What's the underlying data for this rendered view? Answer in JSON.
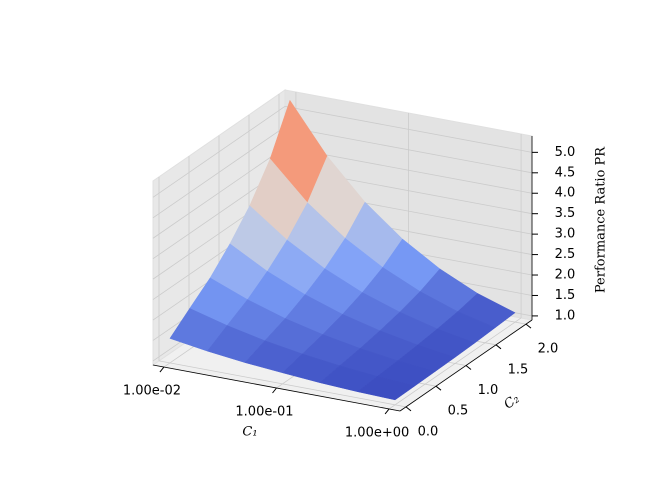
{
  "chart_data": {
    "type": "surface",
    "xlabel": "C₁",
    "ylabel": "C₂",
    "zlabel": "Performance Ratio PR",
    "xscale": "log",
    "colormap": "coolwarm",
    "x": [
      0.01,
      0.0215,
      0.0464,
      0.1,
      0.215,
      0.464,
      1.0
    ],
    "y": [
      0,
      0.33,
      0.67,
      1.0,
      1.33,
      1.67,
      2.0
    ],
    "z": [
      [
        1.5,
        1.36,
        1.25,
        1.17,
        1.1,
        1.05,
        1.02
      ],
      [
        1.9,
        1.65,
        1.45,
        1.3,
        1.18,
        1.09,
        1.03
      ],
      [
        2.3,
        1.94,
        1.65,
        1.43,
        1.26,
        1.13,
        1.04
      ],
      [
        2.8,
        2.3,
        1.9,
        1.59,
        1.36,
        1.18,
        1.05
      ],
      [
        3.4,
        2.73,
        2.2,
        1.79,
        1.48,
        1.24,
        1.07
      ],
      [
        4.2,
        3.3,
        2.6,
        2.06,
        1.64,
        1.32,
        1.1
      ],
      [
        5.3,
        4.1,
        3.15,
        2.42,
        1.86,
        1.43,
        1.13
      ]
    ],
    "xlim": [
      0.008,
      1.25
    ],
    "ylim": [
      -0.1,
      2.1
    ],
    "zlim": [
      0.9,
      5.4
    ],
    "xticks": [
      {
        "value": 0.01,
        "label": "1.00e-02"
      },
      {
        "value": 0.1,
        "label": "1.00e-01"
      },
      {
        "value": 1,
        "label": "1.00e+00"
      }
    ],
    "yticks": [
      {
        "value": 0,
        "label": "0.0"
      },
      0.5,
      {
        "value": 1,
        "label": "1.0"
      },
      1.5,
      {
        "value": 2,
        "label": "2.0"
      }
    ],
    "zticks": [
      {
        "value": 1,
        "label": "1.0"
      },
      1.5,
      {
        "value": 2,
        "label": "2.0"
      },
      2.5,
      {
        "value": 3,
        "label": "3.0"
      },
      3.5,
      {
        "value": 4,
        "label": "4.0"
      },
      4.5,
      {
        "value": 5,
        "label": "5.0"
      }
    ],
    "grid": true
  }
}
